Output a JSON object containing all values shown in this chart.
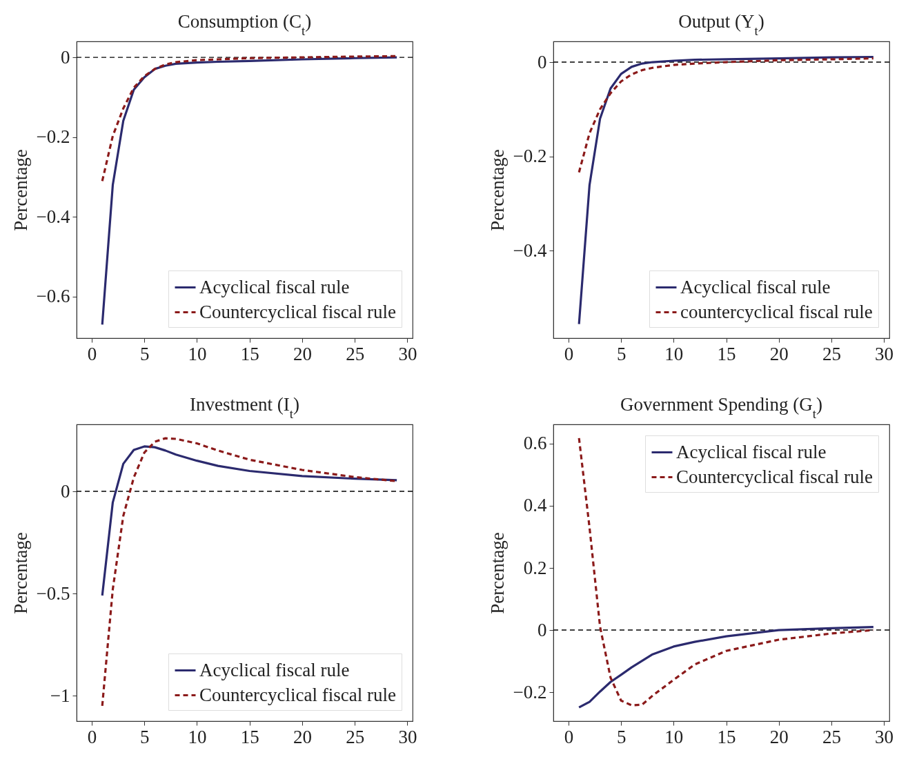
{
  "chart_data": [
    {
      "type": "line",
      "title": "Consumption (C$_{t}$)",
      "ylabel": "Percentage",
      "xlim": [
        -1.44,
        30.5
      ],
      "ylim": [
        -0.704,
        0.04
      ],
      "xticks": [
        0,
        5,
        10,
        15,
        20,
        25,
        30
      ],
      "yticks": [
        {
          "value": -0.6,
          "label": "−0.6"
        },
        {
          "value": -0.4,
          "label": "−0.4"
        },
        {
          "value": -0.2,
          "label": "−0.2"
        },
        0
      ],
      "grid": false,
      "legend": "bottom right",
      "ref_lines": [
        {
          "axis": "y",
          "value": 0,
          "color": "#000000",
          "line_style": "dashed"
        }
      ],
      "series": [
        {
          "name": "Acyclical fiscal rule",
          "color": "#2b2a6e",
          "line_style": "solid",
          "x": [
            1,
            2,
            3,
            4,
            5,
            6,
            7,
            8,
            10,
            12,
            15,
            20,
            25,
            29
          ],
          "values": [
            -0.67,
            -0.32,
            -0.159,
            -0.081,
            -0.05,
            -0.029,
            -0.021,
            -0.016,
            -0.013,
            -0.011,
            -0.009,
            -0.005,
            -0.002,
            0.0
          ]
        },
        {
          "name": "Countercyclical fiscal rule",
          "color": "#8b1a1a",
          "line_style": "dashed",
          "x": [
            1,
            2,
            3,
            4,
            5,
            6,
            7,
            8,
            10,
            12,
            15,
            20,
            25,
            29
          ],
          "values": [
            -0.31,
            -0.197,
            -0.128,
            -0.076,
            -0.047,
            -0.029,
            -0.018,
            -0.012,
            -0.007,
            -0.005,
            -0.002,
            0.0,
            0.002,
            0.003
          ]
        }
      ]
    },
    {
      "type": "line",
      "title": "Output (Y$_{t}$)",
      "ylabel": "Percentage",
      "xlim": [
        -1.44,
        30.52
      ],
      "ylim": [
        -0.586,
        0.044
      ],
      "xticks": [
        0,
        5,
        10,
        15,
        20,
        25,
        30
      ],
      "yticks": [
        {
          "value": -0.4,
          "label": "−0.4"
        },
        {
          "value": -0.2,
          "label": "−0.2"
        },
        0
      ],
      "grid": false,
      "legend": "bottom right",
      "ref_lines": [
        {
          "axis": "y",
          "value": 0,
          "color": "#000000",
          "line_style": "dashed"
        }
      ],
      "series": [
        {
          "name": "Acyclical fiscal rule",
          "color": "#2b2a6e",
          "line_style": "solid",
          "x": [
            1,
            2,
            3,
            4,
            5,
            6,
            7,
            8,
            10,
            12,
            15,
            20,
            25,
            29
          ],
          "values": [
            -0.556,
            -0.261,
            -0.12,
            -0.056,
            -0.025,
            -0.01,
            -0.003,
            0.0,
            0.003,
            0.005,
            0.006,
            0.008,
            0.01,
            0.011
          ]
        },
        {
          "name": "countercyclical fiscal rule",
          "color": "#8b1a1a",
          "line_style": "dashed",
          "x": [
            1,
            2,
            3,
            4,
            5,
            6,
            7,
            8,
            10,
            12,
            15,
            20,
            25,
            29
          ],
          "values": [
            -0.234,
            -0.151,
            -0.1,
            -0.066,
            -0.041,
            -0.026,
            -0.017,
            -0.012,
            -0.006,
            -0.003,
            0.0,
            0.004,
            0.006,
            0.008
          ]
        }
      ]
    },
    {
      "type": "line",
      "title": "Investment (I$_{t}$)",
      "ylabel": "Percentage",
      "xlim": [
        -1.44,
        30.5
      ],
      "ylim": [
        -1.125,
        0.328
      ],
      "xticks": [
        0,
        5,
        10,
        15,
        20,
        25,
        30
      ],
      "yticks": [
        {
          "value": -1,
          "label": "−1"
        },
        {
          "value": -0.5,
          "label": "−0.5"
        },
        0
      ],
      "grid": false,
      "legend": "bottom right",
      "ref_lines": [
        {
          "axis": "y",
          "value": 0,
          "color": "#000000",
          "line_style": "dashed"
        }
      ],
      "series": [
        {
          "name": "Acyclical fiscal rule",
          "color": "#2b2a6e",
          "line_style": "solid",
          "x": [
            1,
            2,
            3,
            4,
            5,
            6,
            7,
            8,
            10,
            12,
            15,
            20,
            25,
            29
          ],
          "values": [
            -0.51,
            -0.054,
            0.135,
            0.203,
            0.22,
            0.216,
            0.2,
            0.18,
            0.15,
            0.125,
            0.1,
            0.075,
            0.062,
            0.055
          ]
        },
        {
          "name": "Countercyclical fiscal rule",
          "color": "#8b1a1a",
          "line_style": "dashed",
          "x": [
            1,
            2,
            3,
            4,
            5,
            6,
            7,
            8,
            10,
            12,
            15,
            20,
            25,
            29
          ],
          "values": [
            -1.05,
            -0.48,
            -0.12,
            0.068,
            0.19,
            0.243,
            0.26,
            0.257,
            0.235,
            0.2,
            0.155,
            0.105,
            0.07,
            0.05
          ]
        }
      ]
    },
    {
      "type": "line",
      "title": "Government Spending (G$_{t}$)",
      "ylabel": "Percentage",
      "xlim": [
        -1.44,
        30.52
      ],
      "ylim": [
        -0.293,
        0.662
      ],
      "xticks": [
        0,
        5,
        10,
        15,
        20,
        25,
        30
      ],
      "yticks": [
        {
          "value": -0.2,
          "label": "−0.2"
        },
        0,
        0.2,
        0.4,
        0.6
      ],
      "grid": false,
      "legend": "top right",
      "ref_lines": [
        {
          "axis": "y",
          "value": 0,
          "color": "#000000",
          "line_style": "dashed"
        }
      ],
      "series": [
        {
          "name": "Acyclical fiscal rule",
          "color": "#2b2a6e",
          "line_style": "solid",
          "x": [
            1,
            2,
            3,
            4,
            5,
            6,
            8,
            10,
            12,
            15,
            20,
            25,
            29
          ],
          "values": [
            -0.249,
            -0.231,
            -0.198,
            -0.167,
            -0.144,
            -0.12,
            -0.078,
            -0.053,
            -0.038,
            -0.02,
            0.0,
            0.006,
            0.01
          ]
        },
        {
          "name": "Countercyclical fiscal rule",
          "color": "#8b1a1a",
          "line_style": "dashed",
          "x": [
            1,
            2,
            3,
            4,
            5,
            6,
            7,
            8,
            10,
            12,
            15,
            20,
            25,
            29
          ],
          "values": [
            0.618,
            0.33,
            0.011,
            -0.153,
            -0.227,
            -0.242,
            -0.24,
            -0.211,
            -0.16,
            -0.111,
            -0.067,
            -0.031,
            -0.011,
            0.0
          ]
        }
      ]
    }
  ]
}
